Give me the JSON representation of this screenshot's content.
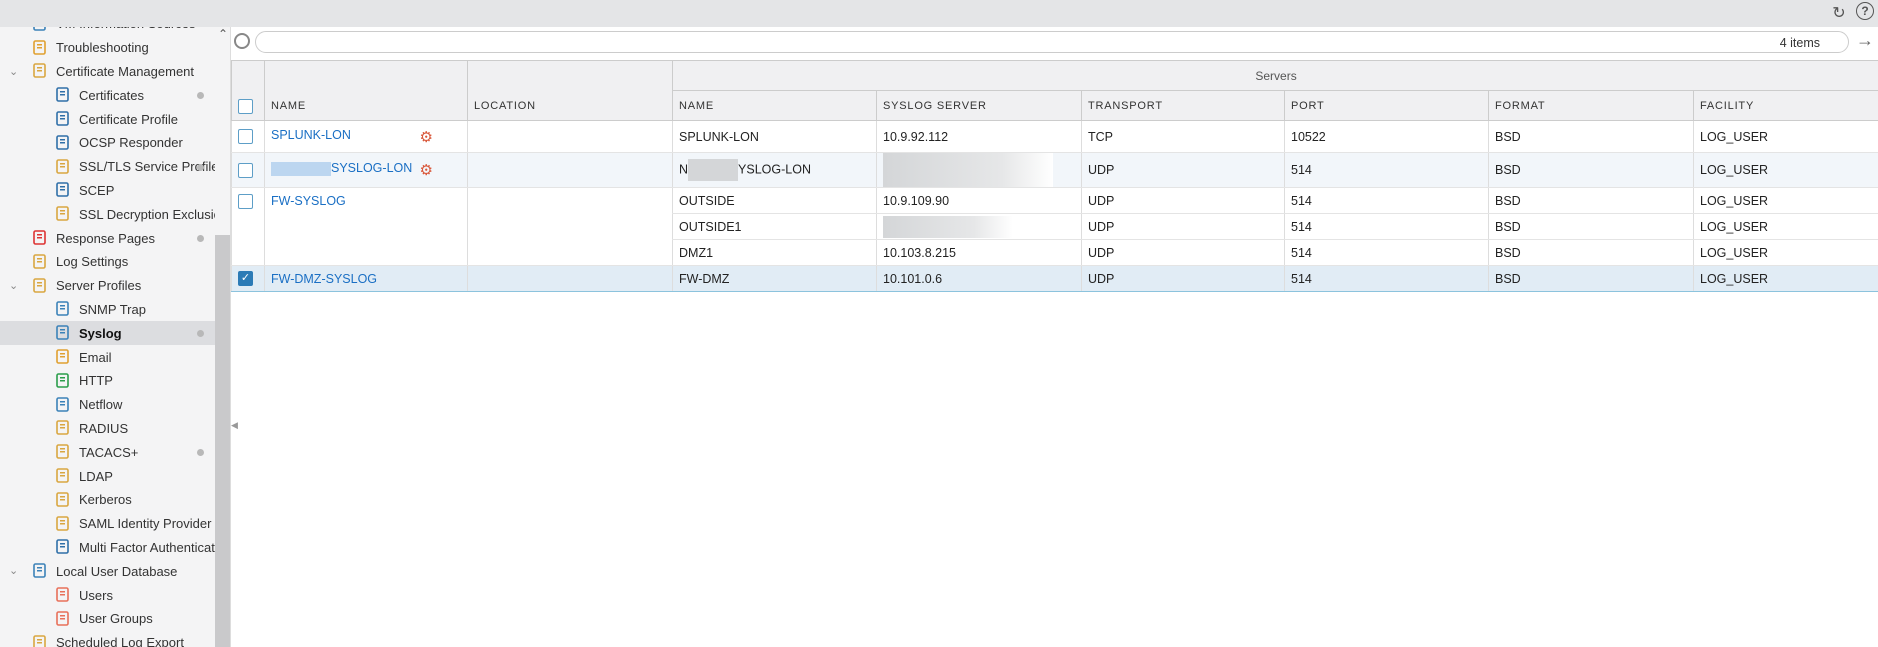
{
  "sidebar": {
    "items": [
      {
        "label": "VM Information Sources",
        "level": 1,
        "icon": "vm-icon",
        "color": "#3b82b8"
      },
      {
        "label": "Troubleshooting",
        "level": 1,
        "icon": "tools-icon",
        "color": "#e0a030"
      },
      {
        "label": "Certificate Management",
        "level": 1,
        "icon": "folder-certificate-icon",
        "color": "#d9a640",
        "expanded": true
      },
      {
        "label": "Certificates",
        "level": 2,
        "icon": "certificate-icon",
        "color": "#2f6fa8",
        "dot": true
      },
      {
        "label": "Certificate Profile",
        "level": 2,
        "icon": "certificate-profile-icon",
        "color": "#2f6fa8"
      },
      {
        "label": "OCSP Responder",
        "level": 2,
        "icon": "ocsp-icon",
        "color": "#2f6fa8"
      },
      {
        "label": "SSL/TLS Service Profile",
        "level": 2,
        "icon": "lock-icon",
        "color": "#d9a640",
        "dot": true
      },
      {
        "label": "SCEP",
        "level": 2,
        "icon": "scep-icon",
        "color": "#2f6fa8"
      },
      {
        "label": "SSL Decryption Exclusion",
        "level": 2,
        "icon": "lock-icon",
        "color": "#d9a640"
      },
      {
        "label": "Response Pages",
        "level": 1,
        "icon": "response-pages-icon",
        "color": "#d33",
        "dot": true
      },
      {
        "label": "Log Settings",
        "level": 1,
        "icon": "log-settings-icon",
        "color": "#d9a640"
      },
      {
        "label": "Server Profiles",
        "level": 1,
        "icon": "server-profiles-icon",
        "color": "#d9a640",
        "expanded": true
      },
      {
        "label": "SNMP Trap",
        "level": 2,
        "icon": "server-icon",
        "color": "#3b82b8"
      },
      {
        "label": "Syslog",
        "level": 2,
        "icon": "server-icon",
        "color": "#3b82b8",
        "selected": true,
        "dot": true
      },
      {
        "label": "Email",
        "level": 2,
        "icon": "email-icon",
        "color": "#e0a030"
      },
      {
        "label": "HTTP",
        "level": 2,
        "icon": "http-icon",
        "color": "#2a9d4a"
      },
      {
        "label": "Netflow",
        "level": 2,
        "icon": "server-icon",
        "color": "#3b82b8"
      },
      {
        "label": "RADIUS",
        "level": 2,
        "icon": "server-lock-icon",
        "color": "#d9a640"
      },
      {
        "label": "TACACS+",
        "level": 2,
        "icon": "server-lock-icon",
        "color": "#d9a640",
        "dot": true
      },
      {
        "label": "LDAP",
        "level": 2,
        "icon": "server-lock-icon",
        "color": "#d9a640"
      },
      {
        "label": "Kerberos",
        "level": 2,
        "icon": "server-lock-icon",
        "color": "#d9a640"
      },
      {
        "label": "SAML Identity Provider",
        "level": 2,
        "icon": "server-lock-icon",
        "color": "#d9a640"
      },
      {
        "label": "Multi Factor Authentication",
        "level": 2,
        "icon": "mfa-icon",
        "color": "#2f6fa8"
      },
      {
        "label": "Local User Database",
        "level": 1,
        "icon": "user-database-icon",
        "color": "#3b82b8",
        "expanded": true
      },
      {
        "label": "Users",
        "level": 2,
        "icon": "user-icon",
        "color": "#e8705a"
      },
      {
        "label": "User Groups",
        "level": 2,
        "icon": "user-group-icon",
        "color": "#e8705a"
      },
      {
        "label": "Scheduled Log Export",
        "level": 1,
        "icon": "folder-icon",
        "color": "#d9a640"
      }
    ]
  },
  "toolbar": {
    "refresh_icon": "refresh-icon",
    "help_icon": "help-icon",
    "help_glyph": "?"
  },
  "search": {
    "placeholder": "",
    "count": "4 items"
  },
  "table": {
    "group_header": "Servers",
    "headers": {
      "name": "NAME",
      "location": "LOCATION",
      "server_name": "NAME",
      "syslog_server": "SYSLOG SERVER",
      "transport": "TRANSPORT",
      "port": "PORT",
      "format": "FORMAT",
      "facility": "FACILITY"
    },
    "rows": [
      {
        "name": "SPLUNK-LON",
        "location": "",
        "checked": false,
        "gear": true,
        "servers": [
          {
            "name": "SPLUNK-LON",
            "syslog_server": "10.9.92.112",
            "transport": "TCP",
            "port": "10522",
            "format": "BSD",
            "facility": "LOG_USER"
          }
        ]
      },
      {
        "name": "SYSLOG-LON",
        "name_redacted": true,
        "location": "",
        "checked": false,
        "gear": true,
        "servers": [
          {
            "name": "YSLOG-LON",
            "name_prefix": "N",
            "name_redacted": true,
            "syslog_server": "",
            "syslog_redacted": true,
            "transport": "UDP",
            "port": "514",
            "format": "BSD",
            "facility": "LOG_USER"
          }
        ]
      },
      {
        "name": "FW-SYSLOG",
        "location": "",
        "checked": false,
        "servers": [
          {
            "name": "OUTSIDE",
            "syslog_server": "10.9.109.90",
            "transport": "UDP",
            "port": "514",
            "format": "BSD",
            "facility": "LOG_USER"
          },
          {
            "name": "OUTSIDE1",
            "syslog_server": "",
            "syslog_redacted": true,
            "transport": "UDP",
            "port": "514",
            "format": "BSD",
            "facility": "LOG_USER"
          },
          {
            "name": "DMZ1",
            "syslog_server": "10.103.8.215",
            "transport": "UDP",
            "port": "514",
            "format": "BSD",
            "facility": "LOG_USER"
          }
        ]
      },
      {
        "name": "FW-DMZ-SYSLOG",
        "location": "",
        "checked": true,
        "selected": true,
        "servers": [
          {
            "name": "FW-DMZ",
            "syslog_server": "10.101.0.6",
            "transport": "UDP",
            "port": "514",
            "format": "BSD",
            "facility": "LOG_USER"
          }
        ]
      }
    ]
  },
  "colors": {
    "link": "#1a6fc4",
    "selected_row": "#e1ecf5",
    "checkbox": "#2c7bb6"
  }
}
